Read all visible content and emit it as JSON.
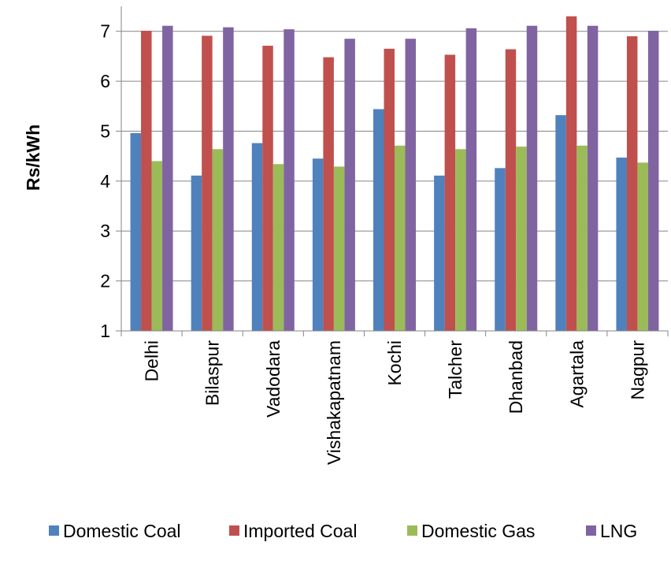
{
  "chart_data": {
    "type": "bar",
    "title": "",
    "xlabel": "",
    "ylabel": "Rs/kWh",
    "ylim": [
      1,
      7.5
    ],
    "yticks": [
      1,
      2,
      3,
      4,
      5,
      6,
      7
    ],
    "grid": "horizontal",
    "legend_position": "bottom",
    "categories": [
      "Delhi",
      "Bilaspur",
      "Vadodara",
      "Vishakapatnam",
      "Kochi",
      "Talcher",
      "Dhanbad",
      "Agartala",
      "Nagpur"
    ],
    "series": [
      {
        "name": "Domestic Coal",
        "color": "#4f81bd",
        "values": [
          4.96,
          4.11,
          4.76,
          4.45,
          5.44,
          4.11,
          4.26,
          5.32,
          4.47
        ]
      },
      {
        "name": "Imported Coal",
        "color": "#c0504d",
        "values": [
          7.01,
          6.91,
          6.71,
          6.48,
          6.65,
          6.53,
          6.64,
          7.3,
          6.9
        ]
      },
      {
        "name": "Domestic Gas",
        "color": "#9bbb59",
        "values": [
          4.4,
          4.64,
          4.34,
          4.29,
          4.71,
          4.64,
          4.69,
          4.71,
          4.37
        ]
      },
      {
        "name": "LNG",
        "color": "#8064a2",
        "values": [
          7.11,
          7.08,
          7.04,
          6.85,
          6.85,
          7.06,
          7.11,
          7.11,
          7.01
        ]
      }
    ]
  }
}
